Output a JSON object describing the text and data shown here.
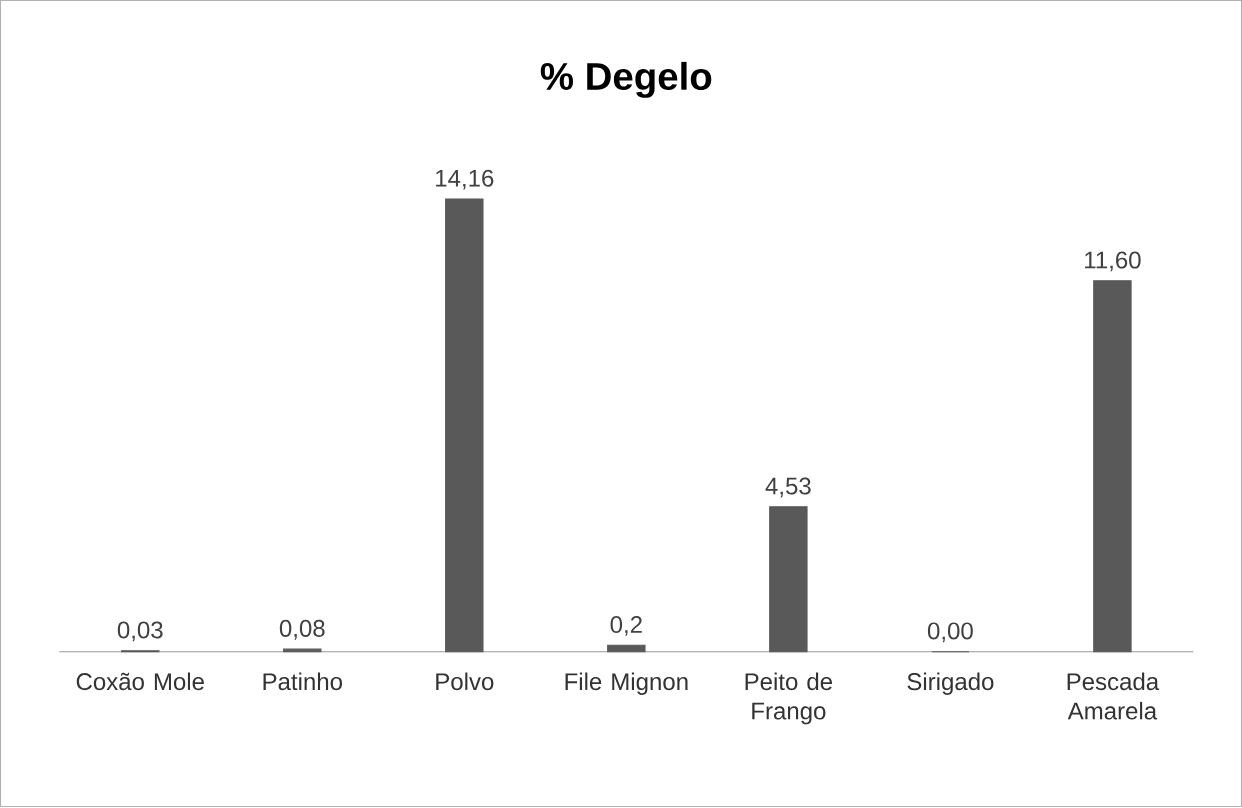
{
  "chart_data": {
    "type": "bar",
    "title": "% Degelo",
    "categories": [
      "Coxão Mole",
      "Patinho",
      "Polvo",
      "File Mignon",
      "Peito de Frango",
      "Sirigado",
      "Pescada Amarela"
    ],
    "values": [
      0.03,
      0.08,
      14.16,
      0.2,
      4.53,
      0.0,
      11.6
    ],
    "value_labels": [
      "0,03",
      "0,08",
      "14,16",
      "0,2",
      "4,53",
      "0,00",
      "11,60"
    ],
    "color": "#595959"
  }
}
